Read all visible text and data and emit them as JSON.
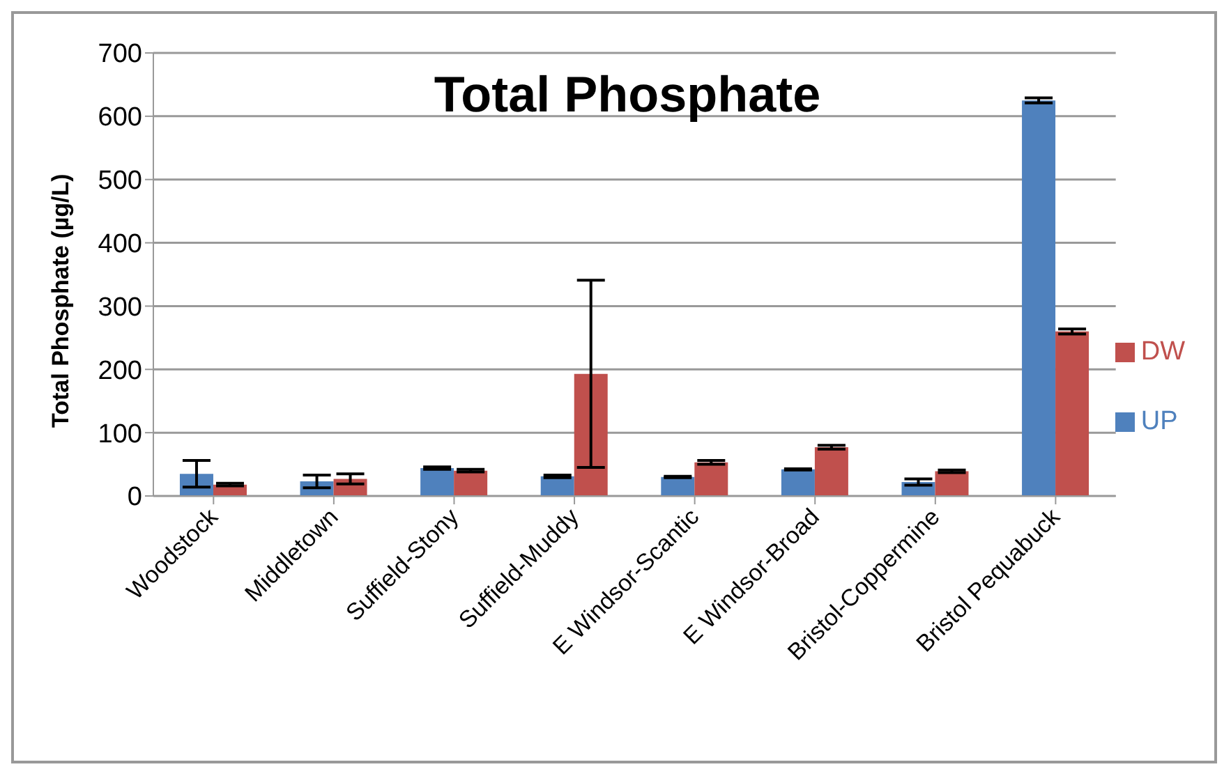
{
  "chart_data": {
    "type": "bar",
    "title": "Total Phosphate",
    "ylabel": "Total Phosphate (µg/L)",
    "categories": [
      "Woodstock",
      "Middletown",
      "Suffield-Stony",
      "Suffield-Muddy",
      "E Windsor-Scantic",
      "E Windsor-Broad",
      "Bristol-Coppermine",
      "Bristol Pequabuck"
    ],
    "series": [
      {
        "name": "UP",
        "color": "#4f81bd",
        "values": [
          35,
          23,
          44,
          31,
          30,
          42,
          22,
          625
        ],
        "errors": [
          21,
          10,
          2,
          2,
          1,
          1,
          5,
          4
        ]
      },
      {
        "name": "DW",
        "color": "#c0504d",
        "values": [
          18,
          27,
          40,
          193,
          53,
          77,
          39,
          260
        ],
        "errors": [
          2,
          8,
          2,
          148,
          3,
          3,
          2,
          4
        ]
      }
    ],
    "ylim": [
      0,
      700
    ],
    "yticks": [
      0,
      100,
      200,
      300,
      400,
      500,
      600,
      700
    ],
    "grid": "y",
    "legend": "right"
  }
}
